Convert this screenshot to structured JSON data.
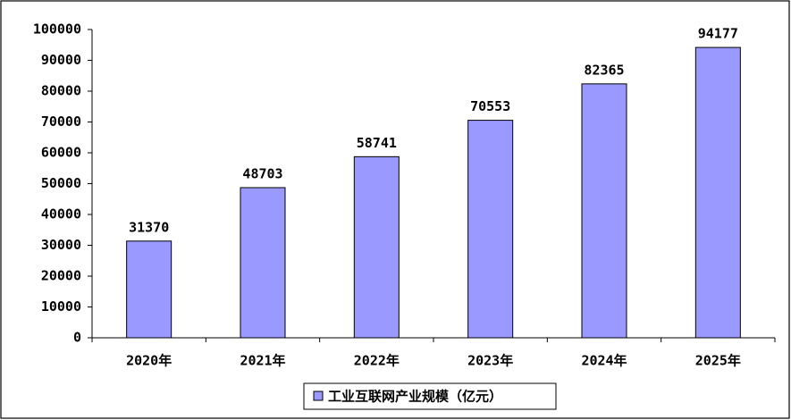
{
  "chart_data": {
    "type": "bar",
    "categories": [
      "2020年",
      "2021年",
      "2022年",
      "2023年",
      "2024年",
      "2025年"
    ],
    "series": [
      {
        "name": "工业互联网产业规模（亿元）",
        "color": "#9999ff",
        "values": [
          31370,
          48703,
          58741,
          70553,
          82365,
          94177
        ]
      }
    ],
    "ylim": [
      0,
      100000
    ],
    "yticks": [
      0,
      10000,
      20000,
      30000,
      40000,
      50000,
      60000,
      70000,
      80000,
      90000,
      100000
    ],
    "legend": "bottom",
    "grid": false,
    "data_labels": true
  }
}
